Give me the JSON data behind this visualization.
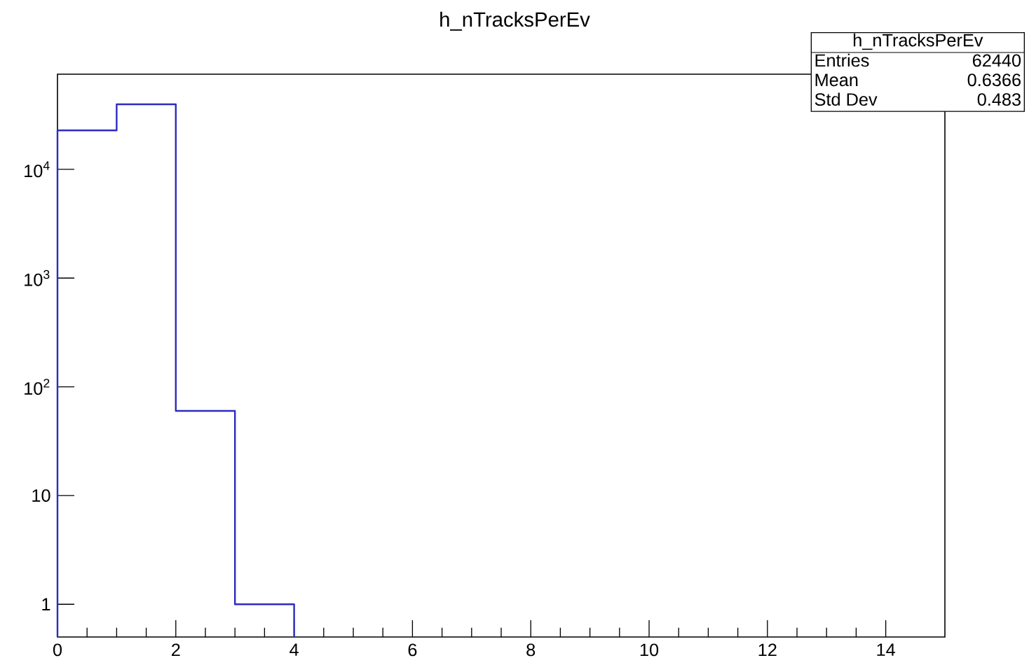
{
  "chart_data": {
    "type": "histogram",
    "title": "h_nTracksPerEv",
    "bins": [
      0,
      1,
      2,
      3,
      4
    ],
    "values": [
      22800,
      39600,
      60,
      1
    ],
    "color": "#2b2bc0",
    "log": "y",
    "xlim": [
      0,
      15
    ],
    "xticks": [
      0,
      2,
      4,
      6,
      8,
      10,
      12,
      14
    ],
    "ylim": [
      0.5,
      75000
    ],
    "yticks": [
      1,
      10,
      {
        "value": 100,
        "label": "10$^{2}$"
      },
      {
        "value": 1000,
        "label": "10$^{3}$"
      },
      {
        "value": 10000,
        "label": "10$^{4}$"
      }
    ],
    "annotations": [
      "h_nTracksPerEv",
      "Entries",
      "62440",
      "Mean",
      "0.6366",
      "Std Dev",
      "0.483"
    ]
  }
}
